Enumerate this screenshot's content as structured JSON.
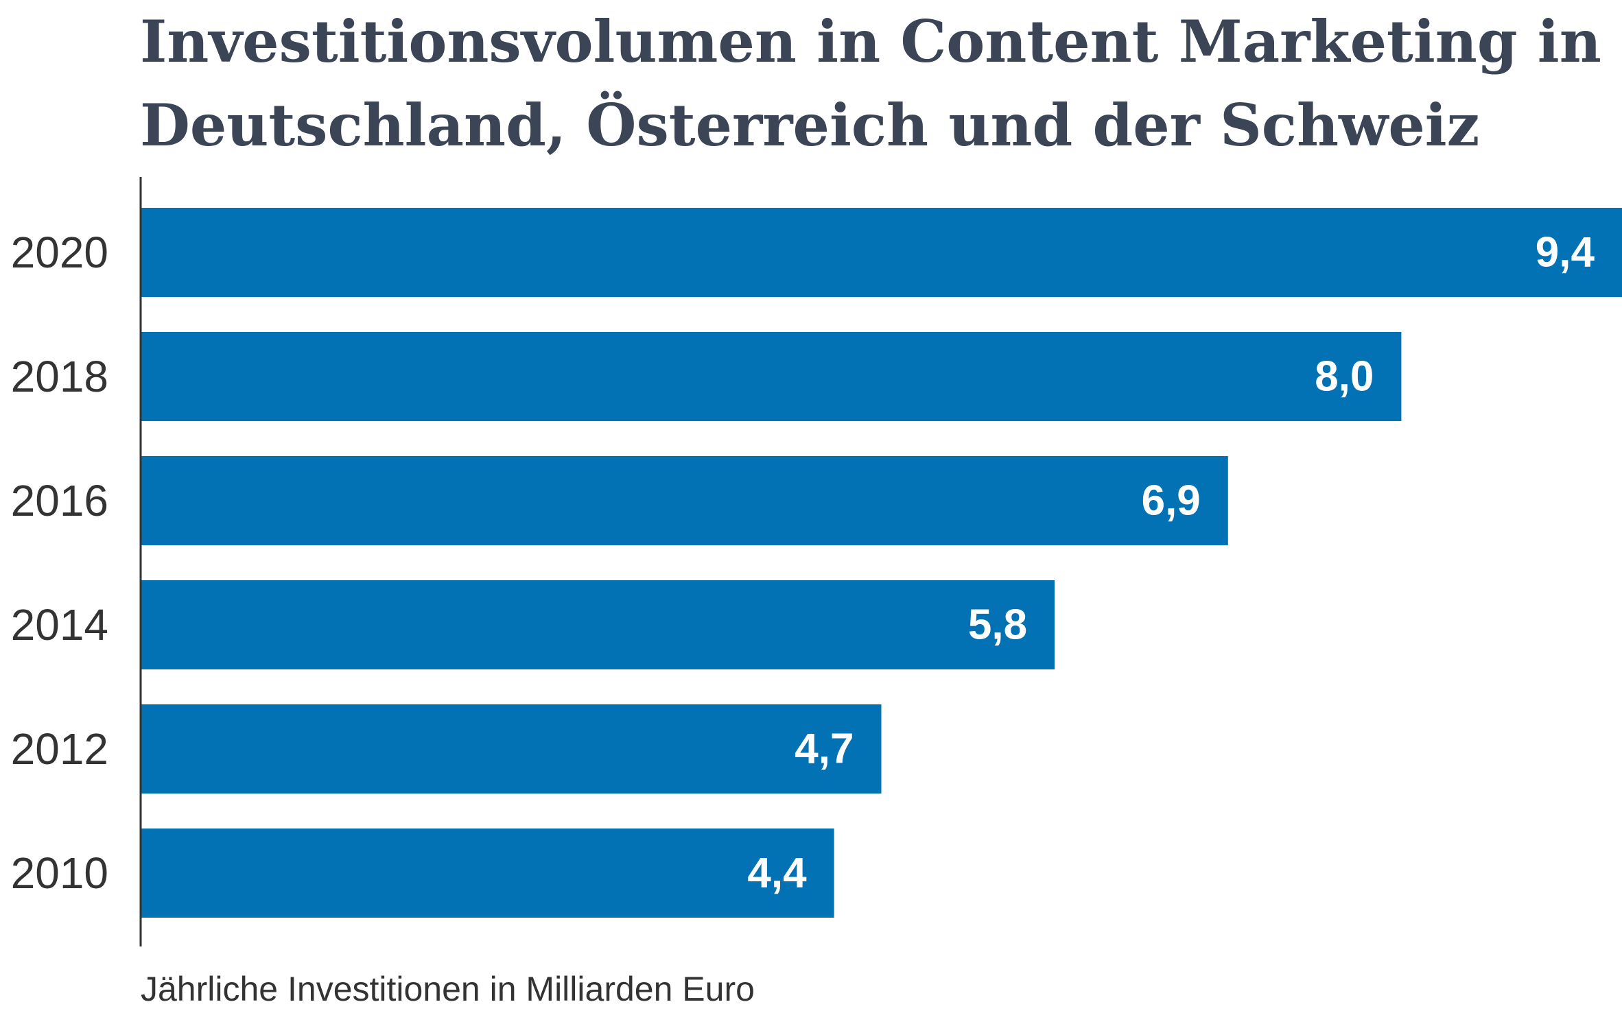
{
  "chart_data": {
    "type": "bar",
    "orientation": "horizontal",
    "title_lines": [
      "Investitionsvolumen in Content Marketing in",
      "Deutschland, Österreich und der Schweiz"
    ],
    "categories": [
      "2020",
      "2018",
      "2016",
      "2014",
      "2012",
      "2010"
    ],
    "values": [
      9.4,
      8.0,
      6.9,
      5.8,
      4.7,
      4.4
    ],
    "value_labels": [
      "9,4",
      "8,0",
      "6,9",
      "5,8",
      "4,7",
      "4,4"
    ],
    "footnote": "Jährliche Investitionen in Milliarden Euro",
    "xlim": [
      0,
      9.4
    ],
    "grid": false,
    "legend": "none"
  },
  "colors": {
    "bar": "#0272b5",
    "title": "#3b4556",
    "axis": "#333333",
    "label_text": "#ffffff",
    "category_text": "#333333"
  }
}
